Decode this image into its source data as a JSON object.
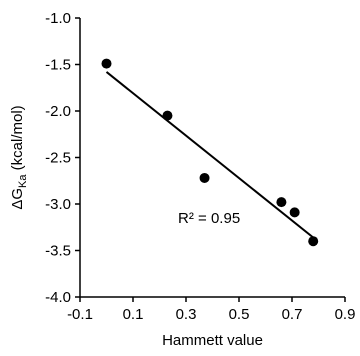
{
  "chart_data": {
    "type": "scatter",
    "xlabel": "Hammett value",
    "ylabel_main": "ΔG",
    "ylabel_sub": "Ka",
    "ylabel_rest": " (kcal/mol)",
    "xlim": [
      -0.1,
      0.9
    ],
    "ylim": [
      -4.0,
      -1.0
    ],
    "x_ticks": [
      -0.1,
      0.1,
      0.3,
      0.5,
      0.7,
      0.9
    ],
    "x_tick_labels": [
      "-0.1",
      "0.1",
      "0.3",
      "0.5",
      "0.7",
      "0.9"
    ],
    "y_ticks": [
      -1.0,
      -1.5,
      -2.0,
      -2.5,
      -3.0,
      -3.5,
      -4.0
    ],
    "y_tick_labels": [
      "-1.0",
      "-1.5",
      "-2.0",
      "-2.5",
      "-3.0",
      "-3.5",
      "-4.0"
    ],
    "grid": false,
    "points": [
      {
        "x": 0.0,
        "y": -1.49
      },
      {
        "x": 0.23,
        "y": -2.05
      },
      {
        "x": 0.37,
        "y": -2.72
      },
      {
        "x": 0.66,
        "y": -2.98
      },
      {
        "x": 0.71,
        "y": -3.09
      },
      {
        "x": 0.78,
        "y": -3.4
      }
    ],
    "fit_line": {
      "x": [
        0.0,
        0.78
      ],
      "y": [
        -1.58,
        -3.36
      ]
    },
    "annotation": {
      "text": "R² = 0.95",
      "x": 0.27,
      "y": -3.15
    }
  }
}
